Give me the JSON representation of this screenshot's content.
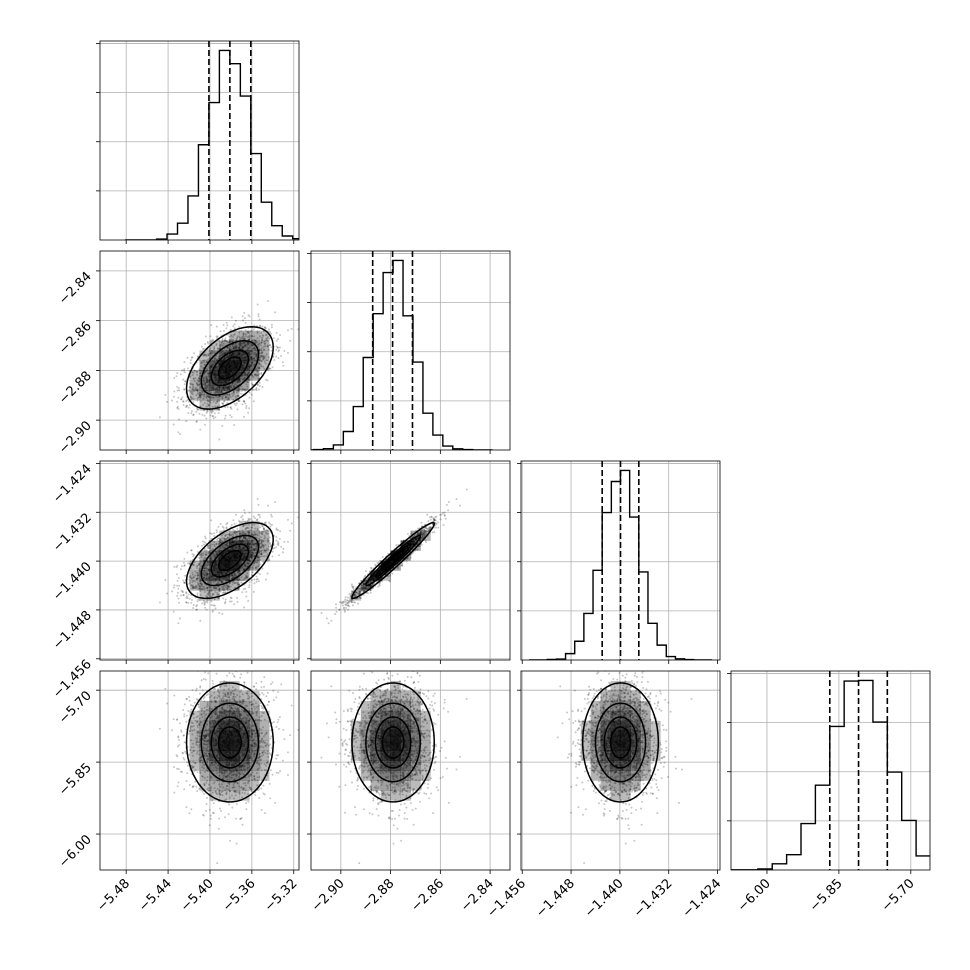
{
  "chart_data": {
    "type": "corner",
    "grid": true,
    "parameters": [
      {
        "range": [
          -5.505,
          -5.315
        ],
        "ticks": [
          -5.48,
          -5.44,
          -5.4,
          -5.36,
          -5.32
        ],
        "tick_labels": [
          "−5.48",
          "−5.44",
          "−5.40",
          "−5.36",
          "−5.32"
        ],
        "mean": -5.381,
        "sd": 0.02,
        "quantiles": [
          -5.401,
          -5.381,
          -5.361
        ]
      },
      {
        "range": [
          -2.912,
          -2.832
        ],
        "ticks": [
          -2.9,
          -2.88,
          -2.86,
          -2.84
        ],
        "tick_labels": [
          "−2.90",
          "−2.88",
          "−2.86",
          "−2.84"
        ],
        "mean": -2.879,
        "sd": 0.008,
        "quantiles": [
          -2.8872,
          -2.8792,
          -2.8712
        ]
      },
      {
        "range": [
          -1.4562,
          -1.4236
        ],
        "ticks": [
          -1.456,
          -1.448,
          -1.44,
          -1.432,
          -1.424
        ],
        "tick_labels": [
          "−1.456",
          "−1.448",
          "−1.440",
          "−1.432",
          "−1.424"
        ],
        "mean": -1.4399,
        "sd": 0.003,
        "quantiles": [
          -1.4429,
          -1.4399,
          -1.4369
        ]
      },
      {
        "range": [
          -6.075,
          -5.66
        ],
        "ticks": [
          -6.0,
          -5.85,
          -5.7
        ],
        "tick_labels": [
          "−6.00",
          "−5.85",
          "−5.70"
        ],
        "mean": -5.809,
        "sd": 0.06,
        "quantiles": [
          -5.869,
          -5.809,
          -5.749
        ]
      }
    ],
    "correlations": [
      [
        1,
        0.5,
        0.55,
        0.0
      ],
      [
        0.5,
        1,
        0.97,
        0.0
      ],
      [
        0.55,
        0.97,
        1,
        0.0
      ],
      [
        0.0,
        0.0,
        0.0,
        1
      ]
    ],
    "histogram_bins": 20,
    "contour_levels_sigma": [
      0.5,
      1.0,
      1.5,
      2.0
    ],
    "hist_yticks_count": 4
  },
  "colors": {
    "axes": "#000000",
    "grid": "#b0b0b0",
    "points": "#000000",
    "density": "#000000"
  }
}
